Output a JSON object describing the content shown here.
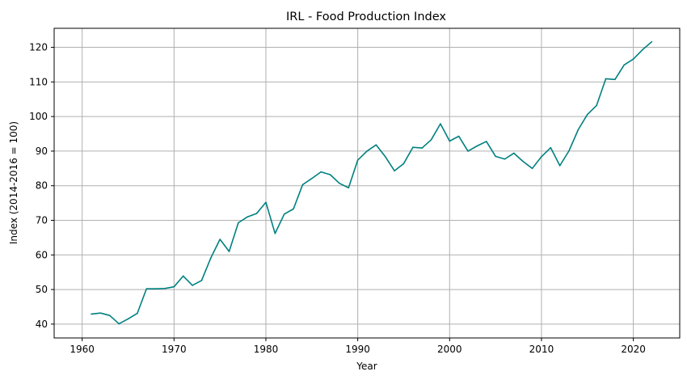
{
  "chart_data": {
    "type": "line",
    "title": "IRL - Food Production Index",
    "xlabel": "Year",
    "ylabel": "Index (2014-2016 = 100)",
    "xlim": [
      1956.95,
      2025.05
    ],
    "ylim": [
      36.0,
      125.5
    ],
    "x_ticks": [
      1960,
      1970,
      1980,
      1990,
      2000,
      2010,
      2020
    ],
    "y_ticks": [
      40,
      50,
      60,
      70,
      80,
      90,
      100,
      110,
      120
    ],
    "grid": true,
    "line_color": "#008080",
    "series": [
      {
        "x": [
          1961,
          1962,
          1963,
          1964,
          1965,
          1966,
          1967,
          1968,
          1969,
          1970,
          1971,
          1972,
          1973,
          1974,
          1975,
          1976,
          1977,
          1978,
          1979,
          1980,
          1981,
          1982,
          1983,
          1984,
          1985,
          1986,
          1987,
          1988,
          1989,
          1990,
          1991,
          1992,
          1993,
          1994,
          1995,
          1996,
          1997,
          1998,
          1999,
          2000,
          2001,
          2002,
          2003,
          2004,
          2005,
          2006,
          2007,
          2008,
          2009,
          2010,
          2011,
          2012,
          2013,
          2014,
          2015,
          2016,
          2017,
          2018,
          2019,
          2020,
          2021,
          2022
        ],
        "values": [
          42.9,
          43.2,
          42.5,
          40.1,
          41.5,
          43.1,
          50.2,
          50.2,
          50.3,
          50.8,
          53.9,
          51.2,
          52.6,
          59.1,
          64.5,
          61.0,
          69.3,
          71.0,
          72.0,
          75.2,
          66.2,
          71.8,
          73.3,
          80.3,
          82.1,
          84.0,
          83.2,
          80.7,
          79.4,
          87.4,
          90.0,
          91.8,
          88.4,
          84.3,
          86.4,
          91.1,
          90.9,
          93.3,
          97.9,
          92.9,
          94.3,
          90.0,
          91.5,
          92.8,
          88.5,
          87.7,
          89.4,
          87.0,
          85.0,
          88.4,
          91.0,
          85.8,
          90.1,
          96.2,
          100.6,
          103.2,
          110.9,
          110.7,
          114.9,
          116.6,
          119.3,
          121.6
        ]
      }
    ]
  }
}
